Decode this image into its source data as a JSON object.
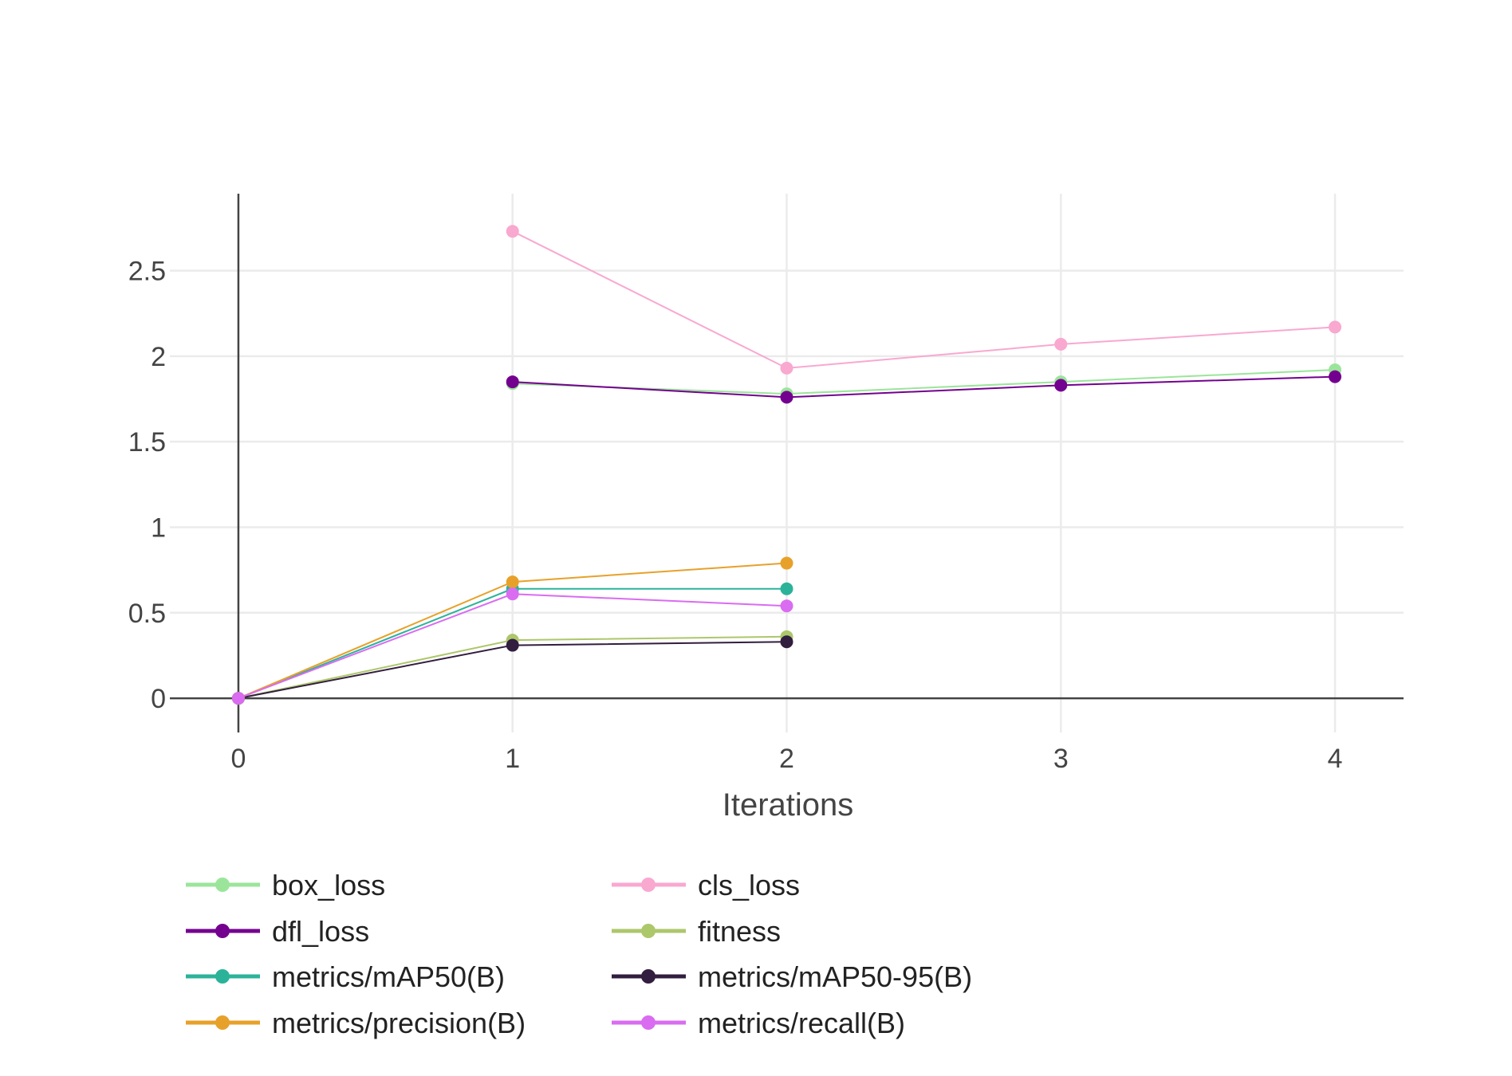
{
  "chart_data": {
    "type": "line",
    "title": "",
    "xlabel": "Iterations",
    "ylabel": "",
    "xlim": [
      -0.25,
      4.25
    ],
    "ylim": [
      -0.2,
      2.95
    ],
    "x_ticks": [
      0,
      1,
      2,
      3,
      4
    ],
    "y_ticks": [
      0,
      0.5,
      1,
      1.5,
      2,
      2.5
    ],
    "x_tick_labels": [
      "0",
      "1",
      "2",
      "3",
      "4"
    ],
    "y_tick_labels": [
      "0",
      "0.5",
      "1",
      "1.5",
      "2",
      "2.5"
    ],
    "grid": true,
    "legend_position": "bottom",
    "series": [
      {
        "name": "box_loss",
        "color": "#9be59b",
        "x": [
          1,
          2,
          3,
          4
        ],
        "y": [
          1.84,
          1.78,
          1.85,
          1.92
        ]
      },
      {
        "name": "cls_loss",
        "color": "#f9a8d0",
        "x": [
          1,
          2,
          3,
          4
        ],
        "y": [
          2.73,
          1.93,
          2.07,
          2.17
        ]
      },
      {
        "name": "dfl_loss",
        "color": "#74008f",
        "x": [
          1,
          2,
          3,
          4
        ],
        "y": [
          1.85,
          1.76,
          1.83,
          1.88
        ]
      },
      {
        "name": "fitness",
        "color": "#adc76b",
        "x": [
          0,
          1,
          2
        ],
        "y": [
          0,
          0.34,
          0.36
        ]
      },
      {
        "name": "metrics/mAP50(B)",
        "color": "#2bb39a",
        "x": [
          0,
          1,
          2
        ],
        "y": [
          0,
          0.64,
          0.64
        ]
      },
      {
        "name": "metrics/mAP50-95(B)",
        "color": "#321e3f",
        "x": [
          0,
          1,
          2
        ],
        "y": [
          0,
          0.31,
          0.33
        ]
      },
      {
        "name": "metrics/precision(B)",
        "color": "#e7a12a",
        "x": [
          0,
          1,
          2
        ],
        "y": [
          0,
          0.68,
          0.79
        ]
      },
      {
        "name": "metrics/recall(B)",
        "color": "#d96cf1",
        "x": [
          0,
          1,
          2
        ],
        "y": [
          0,
          0.61,
          0.54
        ]
      }
    ]
  }
}
